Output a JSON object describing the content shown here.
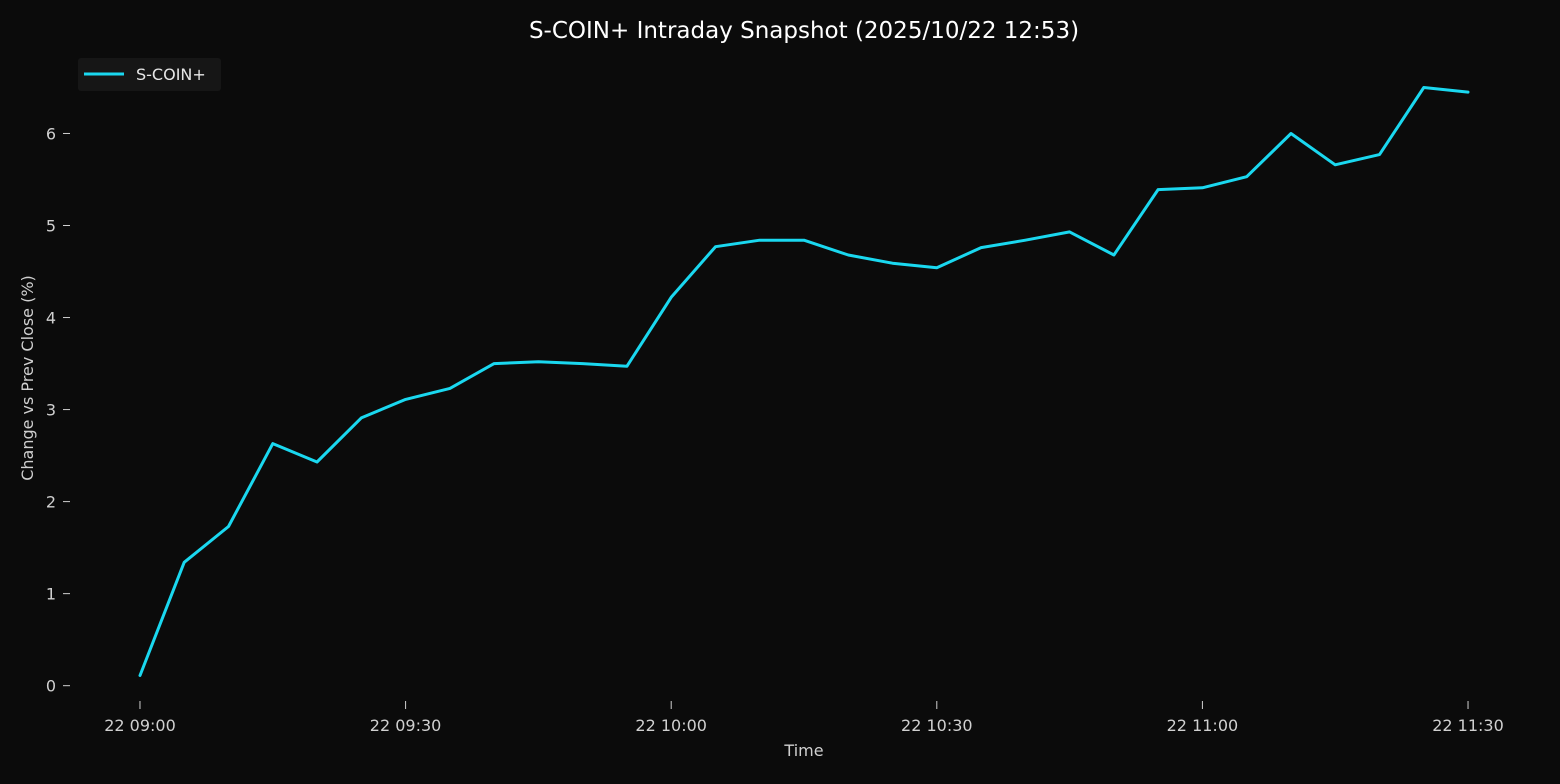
{
  "chart_data": {
    "type": "line",
    "title": "S-COIN+ Intraday Snapshot (2025/10/22 12:53)",
    "xlabel": "Time",
    "ylabel": "Change vs Prev Close (%)",
    "x": [
      "2025-10-22 09:00",
      "2025-10-22 09:05",
      "2025-10-22 09:10",
      "2025-10-22 09:15",
      "2025-10-22 09:20",
      "2025-10-22 09:25",
      "2025-10-22 09:30",
      "2025-10-22 09:35",
      "2025-10-22 09:40",
      "2025-10-22 09:45",
      "2025-10-22 09:50",
      "2025-10-22 09:55",
      "2025-10-22 10:00",
      "2025-10-22 10:05",
      "2025-10-22 10:10",
      "2025-10-22 10:15",
      "2025-10-22 10:20",
      "2025-10-22 10:25",
      "2025-10-22 10:30",
      "2025-10-22 10:35",
      "2025-10-22 10:40",
      "2025-10-22 10:45",
      "2025-10-22 10:50",
      "2025-10-22 10:55",
      "2025-10-22 11:00",
      "2025-10-22 11:05",
      "2025-10-22 11:10",
      "2025-10-22 11:15",
      "2025-10-22 11:20",
      "2025-10-22 11:25",
      "2025-10-22 11:30"
    ],
    "series": [
      {
        "name": "S-COIN+",
        "color": "#1ad8f0",
        "values": [
          0.11,
          1.34,
          1.73,
          2.63,
          2.43,
          2.91,
          3.11,
          3.23,
          3.5,
          3.52,
          3.5,
          3.47,
          4.22,
          4.77,
          4.84,
          4.84,
          4.68,
          4.59,
          4.54,
          4.76,
          4.84,
          4.93,
          4.68,
          5.39,
          5.41,
          5.53,
          6.0,
          5.66,
          5.77,
          6.5,
          6.45
        ]
      }
    ],
    "xticks": [
      {
        "value": "2025-10-22 09:00",
        "label": "22 09:00"
      },
      {
        "value": "2025-10-22 09:30",
        "label": "22 09:30"
      },
      {
        "value": "2025-10-22 10:00",
        "label": "22 10:00"
      },
      {
        "value": "2025-10-22 10:30",
        "label": "22 10:30"
      },
      {
        "value": "2025-10-22 11:00",
        "label": "22 11:00"
      },
      {
        "value": "2025-10-22 11:30",
        "label": "22 11:30"
      }
    ],
    "yticks": [
      0,
      1,
      2,
      3,
      4,
      5,
      6
    ],
    "xlim": [
      "2025-10-22 08:53",
      "2025-10-22 11:37"
    ],
    "ylim": [
      -0.21,
      6.82
    ],
    "grid": false,
    "legend": "top-left",
    "colors": {
      "background": "#0b0b0b",
      "text": "#d0d0d0",
      "title": "#ffffff",
      "legend_bg": "#161616"
    }
  }
}
